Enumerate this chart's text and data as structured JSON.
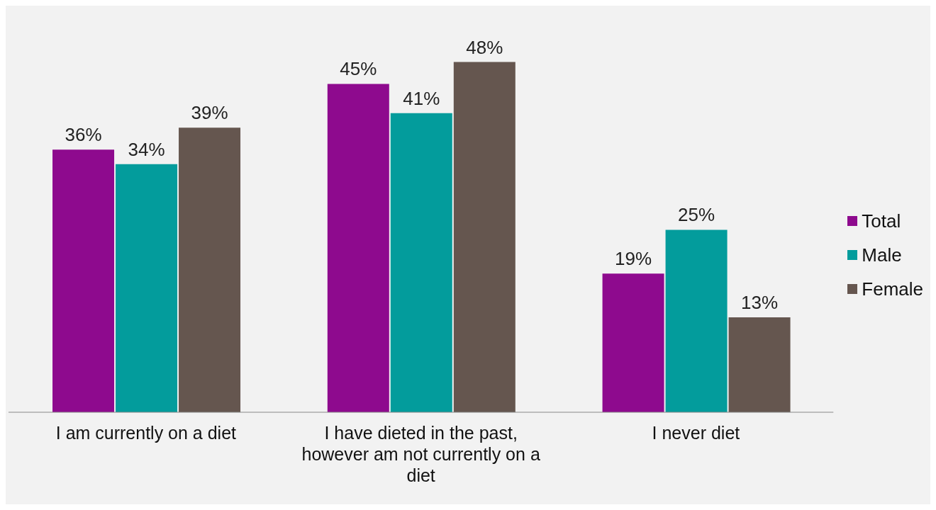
{
  "chart_data": {
    "type": "bar",
    "categories": [
      "I am currently on a diet",
      "I have dieted in the past, however am not currently on a diet",
      "I never diet"
    ],
    "series": [
      {
        "name": "Total",
        "color": "#8e0a8e",
        "values": [
          36,
          45,
          19
        ],
        "value_labels": [
          "36%",
          "45%",
          "19%"
        ]
      },
      {
        "name": "Male",
        "color": "#039c9c",
        "values": [
          34,
          41,
          25
        ],
        "value_labels": [
          "34%",
          "41%",
          "25%"
        ]
      },
      {
        "name": "Female",
        "color": "#65564f",
        "values": [
          39,
          48,
          13
        ],
        "value_labels": [
          "39%",
          "48%",
          "13%"
        ]
      }
    ],
    "grid": false,
    "legend": "right"
  }
}
